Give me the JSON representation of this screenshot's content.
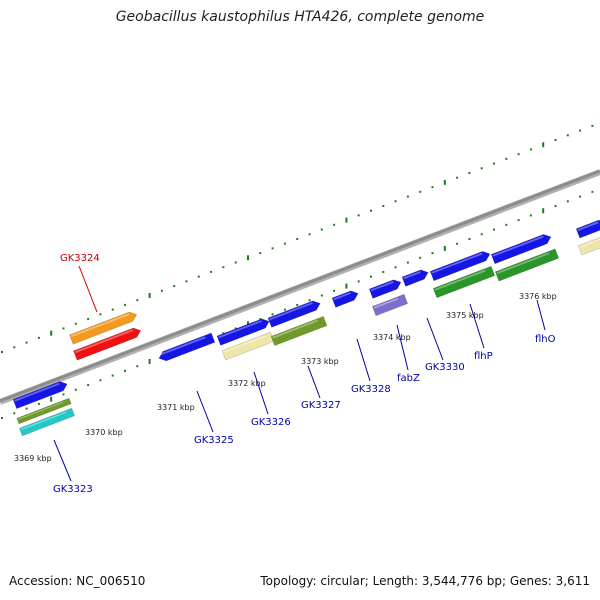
{
  "title": "Geobacillus kaustophilus HTA426, complete genome",
  "footer": {
    "accession": "Accession: NC_006510",
    "summary": "Topology: circular; Length: 3,544,776 bp; Genes: 3,611"
  },
  "kbp_labels": [
    "3369 kbp",
    "3370 kbp",
    "3371 kbp",
    "3372 kbp",
    "3373 kbp",
    "3374 kbp",
    "3375 kbp",
    "3376 kbp"
  ],
  "gene_labels": [
    "GK3324",
    "GK3323",
    "GK3325",
    "GK3326",
    "GK3327",
    "GK3328",
    "fabZ",
    "GK3330",
    "flhP",
    "flhO"
  ],
  "colors": {
    "backbone": "#8c8c8c",
    "tick": "#1e7a1e",
    "cds_blue": "#1515e6",
    "orange": "#f29a1e",
    "red": "#ee1111",
    "olive": "#6f9a2a",
    "cyan": "#22c8c8",
    "pale_yellow": "#ede6a8",
    "green": "#2a962a",
    "lavender": "#7a70cc",
    "label_red": "#cc0000",
    "label_blue": "#0000aa"
  }
}
